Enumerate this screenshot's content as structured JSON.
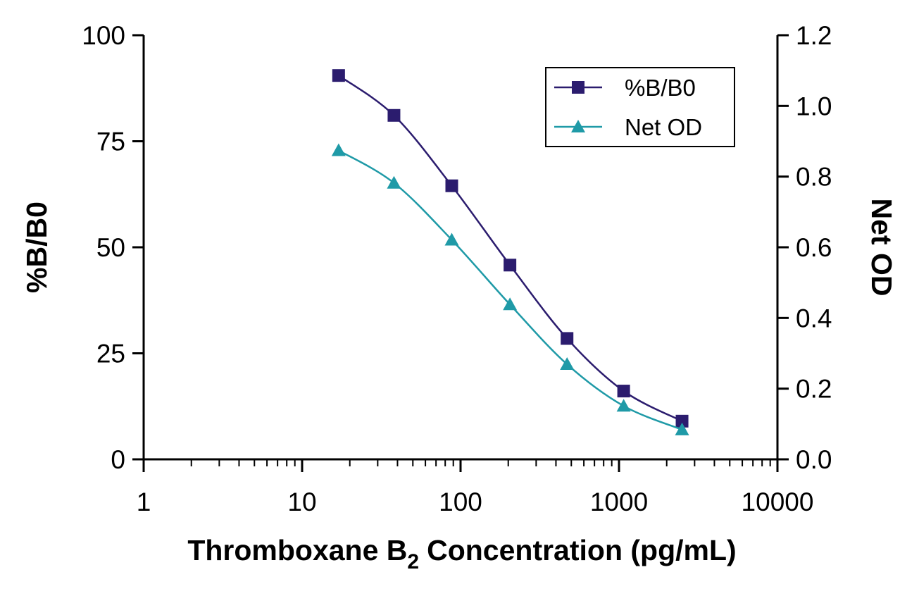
{
  "chart_data": {
    "type": "line",
    "x_label": [
      "Thromboxane B",
      "2",
      "Concentration (pg/mL)"
    ],
    "y_label": "%B/B0",
    "y2_label": "Net OD",
    "x": [
      17,
      38,
      88,
      205,
      470,
      1070,
      2500
    ],
    "xlim": [
      1,
      10000
    ],
    "xticks": [
      1,
      10,
      100,
      1000,
      10000
    ],
    "xscale": "log",
    "ylim": [
      0,
      100
    ],
    "yticks": [
      0,
      25,
      50,
      75,
      100
    ],
    "y2lim": [
      0,
      1.2
    ],
    "y2ticks": [
      {
        "value": 0,
        "label": "0.0"
      },
      0.2,
      0.4,
      0.6,
      0.8,
      {
        "value": 1,
        "label": "1.0"
      },
      1.2
    ],
    "legend": "upper right",
    "series": [
      {
        "name": "%B/B0",
        "color": "#2b1c6e",
        "marker": "square",
        "values": [
          90.5,
          81.1,
          64.5,
          45.8,
          28.5,
          16.1,
          9.0
        ]
      },
      {
        "name": "Net OD",
        "color": "#1f9aa7",
        "marker": "triangle",
        "axis": "y2",
        "values": [
          0.874,
          0.782,
          0.621,
          0.438,
          0.269,
          0.151,
          0.084
        ]
      }
    ]
  }
}
